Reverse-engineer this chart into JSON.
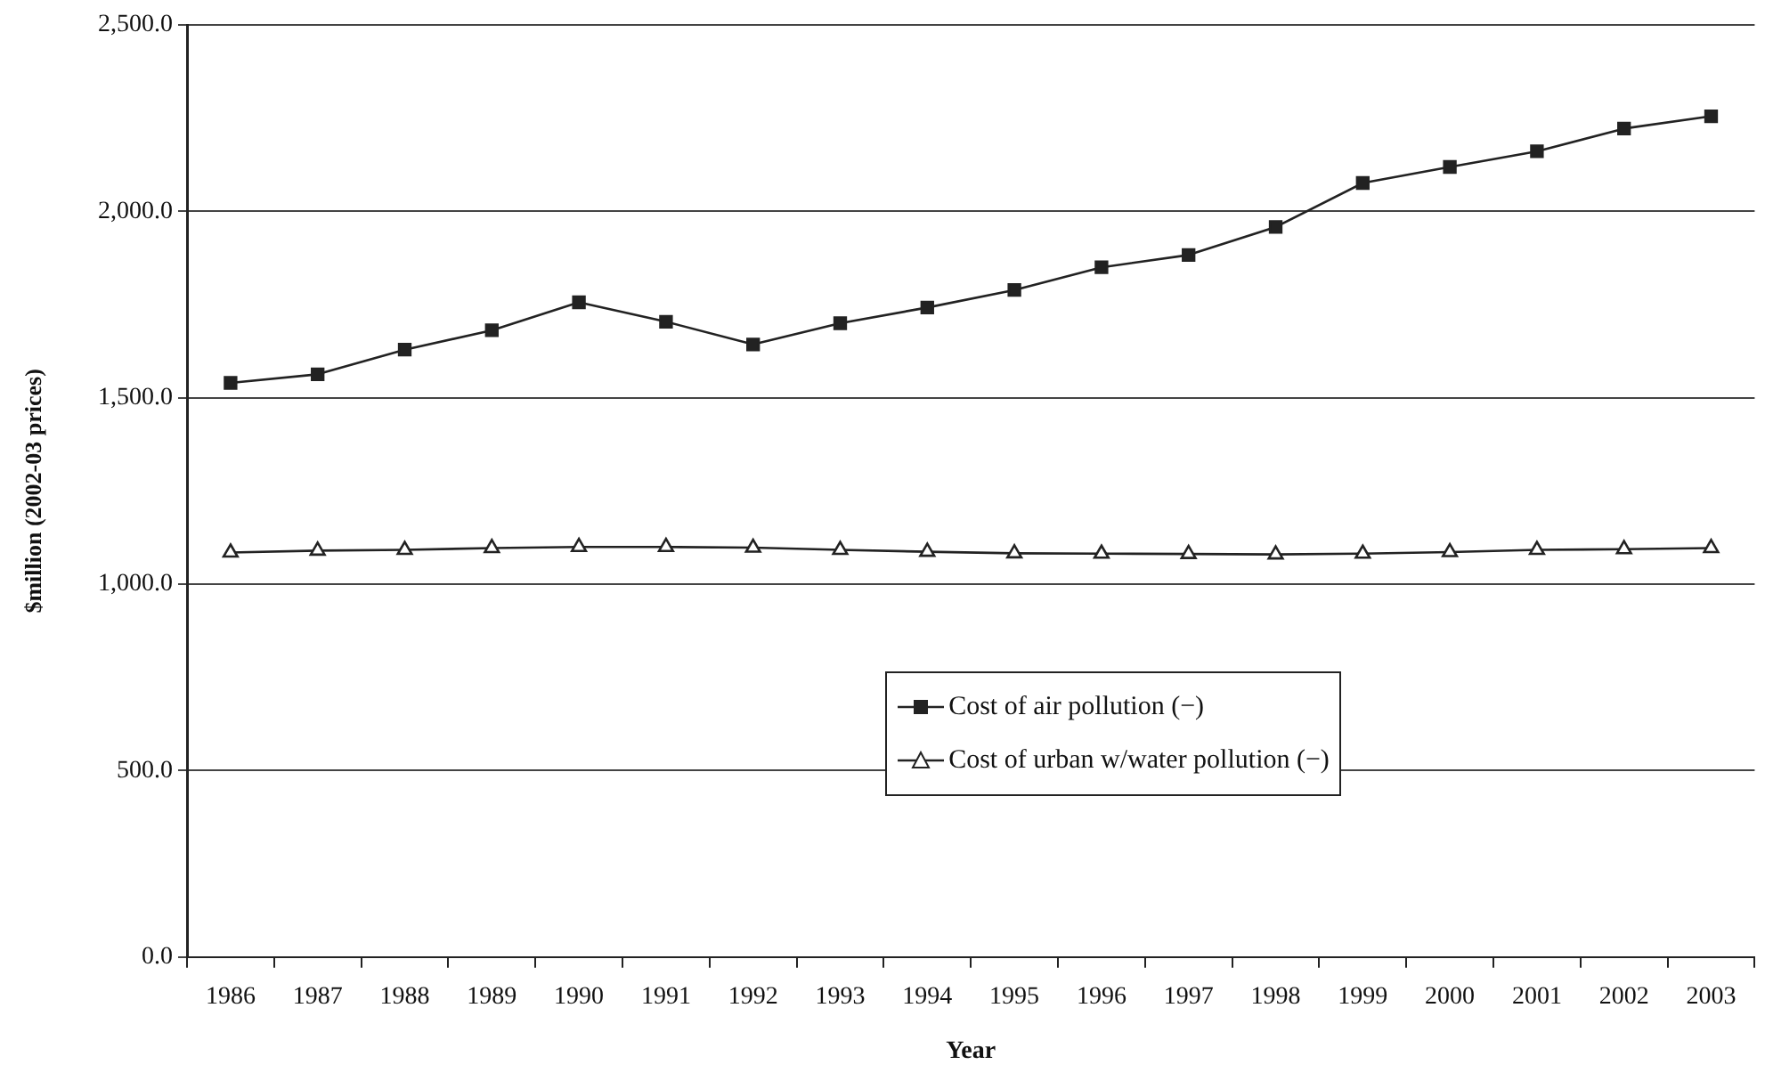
{
  "chart_data": {
    "type": "line",
    "xlabel": "Year",
    "ylabel": "$million (2002-03 prices)",
    "categories": [
      "1986",
      "1987",
      "1988",
      "1989",
      "1990",
      "1991",
      "1992",
      "1993",
      "1994",
      "1995",
      "1996",
      "1997",
      "1998",
      "1999",
      "2000",
      "2001",
      "2002",
      "2003"
    ],
    "series": [
      {
        "name": "Cost of air pollution (−)",
        "color": "#222222",
        "marker": "square",
        "values": [
          1540,
          1563,
          1629,
          1681,
          1756,
          1704,
          1643,
          1700,
          1742,
          1789,
          1850,
          1883,
          1958,
          2076,
          2119,
          2161,
          2222,
          2255
        ]
      },
      {
        "name": "Cost of urban w/water pollution (−)",
        "color": "#222222",
        "marker": "triangle",
        "values": [
          1085,
          1090,
          1092,
          1097,
          1100,
          1100,
          1098,
          1092,
          1087,
          1083,
          1082,
          1081,
          1080,
          1082,
          1086,
          1092,
          1094,
          1097
        ]
      }
    ],
    "ylim": [
      0,
      2500
    ],
    "yticks": [
      {
        "value": 0,
        "label": "0.0"
      },
      {
        "value": 500,
        "label": "500.0"
      },
      {
        "value": 1000,
        "label": "1,000.0"
      },
      {
        "value": 1500,
        "label": "1,500.0"
      },
      {
        "value": 2000,
        "label": "2,000.0"
      },
      {
        "value": 2500,
        "label": "2,500.0"
      }
    ],
    "grid": "y",
    "legend": "bottom",
    "line_style": "solid"
  }
}
